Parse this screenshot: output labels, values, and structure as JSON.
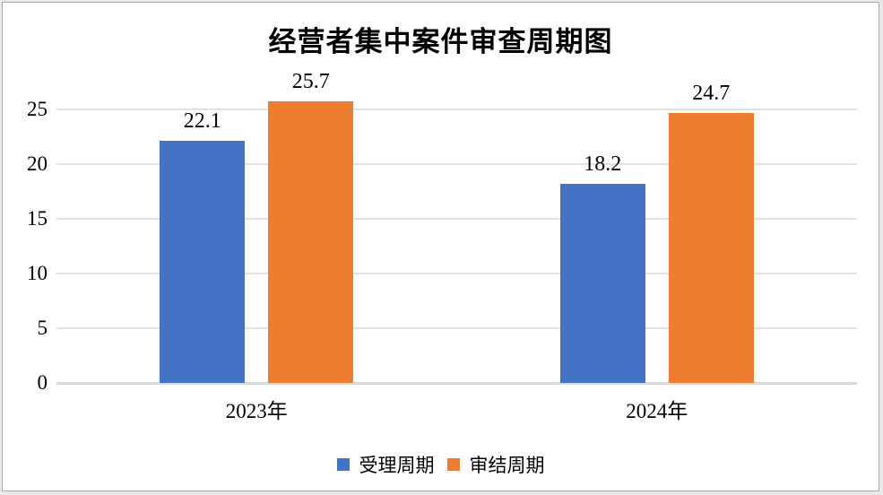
{
  "chart_data": {
    "type": "bar",
    "title": "经营者集中案件审查周期图",
    "categories": [
      "2023年",
      "2024年"
    ],
    "series": [
      {
        "name": "受理周期",
        "color": "#4472C4",
        "values": [
          22.1,
          18.2
        ]
      },
      {
        "name": "审结周期",
        "color": "#ED7D31",
        "values": [
          25.7,
          24.7
        ]
      }
    ],
    "y_ticks": [
      0,
      5,
      10,
      15,
      20,
      25
    ],
    "ylim": [
      0,
      27.5
    ],
    "grid": "horizontal",
    "legend_position": "bottom",
    "data_labels": true,
    "xlabel": "",
    "ylabel": ""
  },
  "frame": {
    "background": "#ffffff",
    "border_color": "#a8a8a8",
    "gridline_color": "#e2e2e2",
    "axis_color": "#d9d9d9"
  }
}
